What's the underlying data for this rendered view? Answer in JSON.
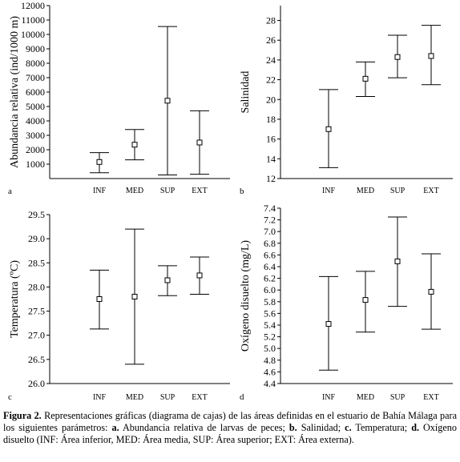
{
  "chart_data": [
    {
      "type": "box",
      "panel_label": "a",
      "ylabel": "Abundancia relativa (ind/1000 m)",
      "categories": [
        "INF",
        "MED",
        "SUP",
        "EXT"
      ],
      "ylim": [
        0,
        12000
      ],
      "yticks": [
        1000,
        2000,
        3000,
        4000,
        5000,
        6000,
        7000,
        8000,
        9000,
        10000,
        11000,
        12000
      ],
      "series": [
        {
          "category": "INF",
          "low": 400,
          "mean": 1150,
          "high": 1800
        },
        {
          "category": "MED",
          "low": 1300,
          "mean": 2350,
          "high": 3400
        },
        {
          "category": "SUP",
          "low": 250,
          "mean": 5400,
          "high": 10550
        },
        {
          "category": "EXT",
          "low": 300,
          "mean": 2500,
          "high": 4700
        }
      ]
    },
    {
      "type": "box",
      "panel_label": "b",
      "ylabel": "Salinidad",
      "categories": [
        "INF",
        "MED",
        "SUP",
        "EXT"
      ],
      "ylim": [
        12,
        29.5
      ],
      "yticks": [
        12,
        14,
        16,
        18,
        20,
        22,
        24,
        26,
        28
      ],
      "series": [
        {
          "category": "INF",
          "low": 13.1,
          "mean": 17.0,
          "high": 21.0
        },
        {
          "category": "MED",
          "low": 20.3,
          "mean": 22.1,
          "high": 23.8
        },
        {
          "category": "SUP",
          "low": 22.2,
          "mean": 24.3,
          "high": 26.5
        },
        {
          "category": "EXT",
          "low": 21.5,
          "mean": 24.4,
          "high": 27.5
        }
      ]
    },
    {
      "type": "box",
      "panel_label": "c",
      "ylabel": "Temperatura (ºC)",
      "categories": [
        "INF",
        "MED",
        "SUP",
        "EXT"
      ],
      "ylim": [
        26.0,
        29.5
      ],
      "yticks": [
        26.0,
        26.5,
        27.0,
        27.5,
        28.0,
        28.5,
        29.0,
        29.5
      ],
      "series": [
        {
          "category": "INF",
          "low": 27.13,
          "mean": 27.75,
          "high": 28.35
        },
        {
          "category": "MED",
          "low": 26.4,
          "mean": 27.8,
          "high": 29.2
        },
        {
          "category": "SUP",
          "low": 27.82,
          "mean": 28.14,
          "high": 28.44
        },
        {
          "category": "EXT",
          "low": 27.85,
          "mean": 28.24,
          "high": 28.62
        }
      ]
    },
    {
      "type": "box",
      "panel_label": "d",
      "ylabel": "Oxígeno disuelto (mg/L)",
      "categories": [
        "INF",
        "MED",
        "SUP",
        "EXT"
      ],
      "ylim": [
        4.4,
        7.4
      ],
      "yticks": [
        4.4,
        4.6,
        4.8,
        5.0,
        5.2,
        5.4,
        5.6,
        5.8,
        6.0,
        6.2,
        6.4,
        6.6,
        6.8,
        7.0,
        7.2,
        7.4
      ],
      "series": [
        {
          "category": "INF",
          "low": 4.63,
          "mean": 5.42,
          "high": 6.23
        },
        {
          "category": "MED",
          "low": 5.28,
          "mean": 5.83,
          "high": 6.32
        },
        {
          "category": "SUP",
          "low": 5.72,
          "mean": 6.49,
          "high": 7.25
        },
        {
          "category": "EXT",
          "low": 5.33,
          "mean": 5.97,
          "high": 6.62
        }
      ]
    }
  ],
  "caption": {
    "lead": "Figura 2.",
    "t1": " Representaciones gráficas (diagrama de cajas) de las áreas definidas en el estuario de Bahía Málaga para los siguientes parámetros: ",
    "a_key": "a.",
    "t2": " Abundancia relativa de larvas de peces; ",
    "b_key": "b.",
    "t3": " Salinidad; ",
    "c_key": "c.",
    "t4": " Temperatura; ",
    "d_key": "d.",
    "t5": " Oxígeno disuelto (INF: Área inferior, MED: Área media, SUP: Área superior; EXT: Área externa)."
  }
}
